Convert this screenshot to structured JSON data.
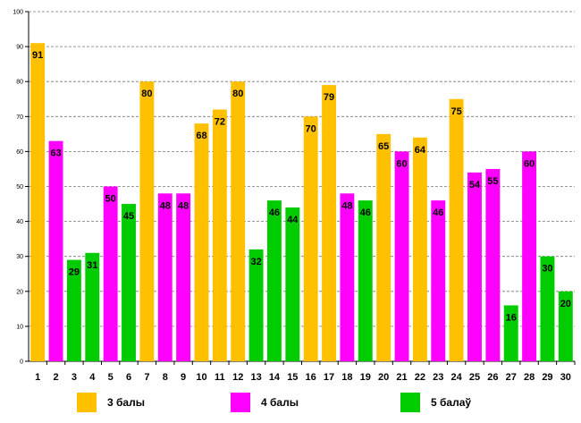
{
  "chart_data": {
    "type": "bar",
    "title": "",
    "xlabel": "",
    "ylabel": "",
    "ylim": [
      0,
      100
    ],
    "yticks": [
      0,
      10,
      20,
      30,
      40,
      50,
      60,
      70,
      80,
      90,
      100
    ],
    "grid": true,
    "legend_position": "bottom",
    "categories": [
      "1",
      "2",
      "3",
      "4",
      "5",
      "6",
      "7",
      "8",
      "9",
      "10",
      "11",
      "12",
      "13",
      "14",
      "15",
      "16",
      "17",
      "18",
      "19",
      "20",
      "21",
      "22",
      "23",
      "24",
      "25",
      "26",
      "27",
      "28",
      "29",
      "30"
    ],
    "values": [
      91,
      63,
      29,
      31,
      50,
      45,
      80,
      48,
      48,
      68,
      72,
      80,
      32,
      46,
      44,
      70,
      79,
      48,
      46,
      65,
      60,
      64,
      46,
      75,
      54,
      55,
      16,
      60,
      30,
      20
    ],
    "bar_series": [
      0,
      1,
      2,
      2,
      1,
      2,
      0,
      1,
      1,
      0,
      0,
      0,
      2,
      2,
      2,
      0,
      0,
      1,
      2,
      0,
      1,
      0,
      1,
      0,
      1,
      1,
      2,
      1,
      2,
      2
    ],
    "series": [
      {
        "name": "3 балы",
        "color": "#FFC000"
      },
      {
        "name": "4 балы",
        "color": "#FF00FF"
      },
      {
        "name": "5 балаў",
        "color": "#00CC00"
      }
    ]
  }
}
